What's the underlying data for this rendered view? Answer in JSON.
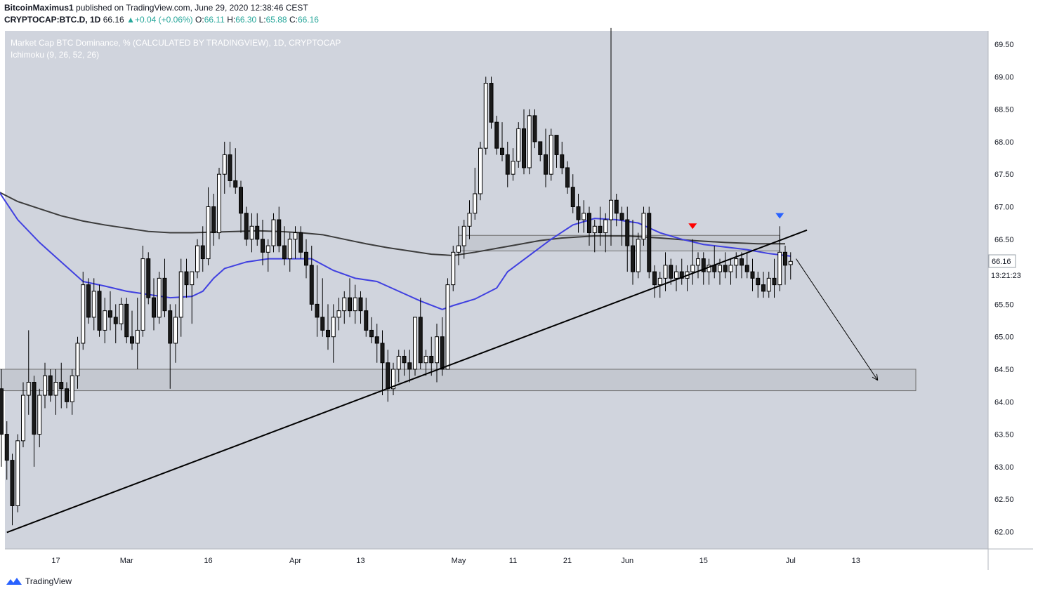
{
  "header": {
    "author": "BitcoinMaximus1",
    "published": "published on TradingView.com, June 29, 2020 12:38:46 CEST",
    "symbol": "CRYPTOCAP:BTC.D, 1D",
    "last": "66.16",
    "change": "+0.04 (+0.06%)",
    "open_label": "O:",
    "open": "66.11",
    "high_label": "H:",
    "high": "66.30",
    "low_label": "L:",
    "low": "65.88",
    "close_label": "C:",
    "close": "66.16"
  },
  "footer": {
    "brand": "TradingView"
  },
  "colors": {
    "plot_bg": "#d0d4dd",
    "bull_body": "#ffffff",
    "bear_body": "#1a1a1a",
    "ma_blue": "#4040e0",
    "ma_dark": "#3c3c3c",
    "trendline": "#000000",
    "zone_fill": "#c4c8d0",
    "zone_border": "#707070",
    "arrow_red": "#ff0000",
    "arrow_blue": "#2962ff"
  },
  "chart_data": {
    "type": "candlestick",
    "title": "Market Cap BTC Dominance, % (CALCULATED BY TRADINGVIEW), 1D, CRYPTOCAP",
    "indicator": "Ichimoku (9, 26, 52, 26)",
    "ylim": [
      61.8,
      69.75
    ],
    "y_ticks": [
      "69.50",
      "69.00",
      "68.50",
      "68.00",
      "67.50",
      "67.00",
      "66.50",
      "66.00",
      "65.50",
      "65.00",
      "64.50",
      "64.00",
      "63.50",
      "63.00",
      "62.50",
      "62.00"
    ],
    "x_ticks": [
      {
        "label": "17",
        "day": 47
      },
      {
        "label": "Mar",
        "day": 60
      },
      {
        "label": "16",
        "day": 75
      },
      {
        "label": "Apr",
        "day": 91
      },
      {
        "label": "13",
        "day": 103
      },
      {
        "label": "May",
        "day": 121
      },
      {
        "label": "11",
        "day": 131
      },
      {
        "label": "21",
        "day": 141
      },
      {
        "label": "Jun",
        "day": 152
      },
      {
        "label": "15",
        "day": 166
      },
      {
        "label": "Jul",
        "day": 182
      },
      {
        "label": "13",
        "day": 194
      }
    ],
    "x_range_days": [
      32,
      205
    ],
    "price_label": "66.16",
    "countdown_label": "13:21:23",
    "ohlc": [
      [
        33,
        65.1,
        65.2,
        64.8,
        64.95
      ],
      [
        34,
        64.95,
        65.15,
        64.7,
        64.8
      ],
      [
        35,
        64.8,
        64.9,
        64.4,
        64.5
      ],
      [
        36,
        64.5,
        64.6,
        63.9,
        64.2
      ],
      [
        37,
        64.2,
        64.5,
        63.0,
        63.5
      ],
      [
        38,
        63.5,
        63.7,
        62.8,
        63.1
      ],
      [
        39,
        63.1,
        63.2,
        62.1,
        62.4
      ],
      [
        40,
        62.4,
        63.5,
        62.3,
        63.4
      ],
      [
        41,
        63.4,
        64.3,
        63.3,
        64.1
      ],
      [
        42,
        64.1,
        65.1,
        63.8,
        64.3
      ],
      [
        43,
        64.3,
        64.4,
        63.0,
        63.5
      ],
      [
        44,
        63.5,
        64.2,
        63.3,
        64.1
      ],
      [
        45,
        64.1,
        64.6,
        63.9,
        64.4
      ],
      [
        46,
        64.4,
        64.5,
        64.0,
        64.1
      ],
      [
        47,
        64.1,
        64.5,
        63.8,
        64.3
      ],
      [
        48,
        64.3,
        64.6,
        63.9,
        64.2
      ],
      [
        49,
        64.2,
        64.3,
        63.9,
        64.0
      ],
      [
        50,
        64.0,
        64.5,
        63.8,
        64.4
      ],
      [
        51,
        64.4,
        65.0,
        64.2,
        64.9
      ],
      [
        52,
        64.9,
        66.0,
        64.8,
        65.8
      ],
      [
        53,
        65.8,
        65.9,
        65.2,
        65.3
      ],
      [
        54,
        65.3,
        65.9,
        65.1,
        65.7
      ],
      [
        55,
        65.7,
        65.8,
        65.0,
        65.1
      ],
      [
        56,
        65.1,
        65.6,
        64.9,
        65.4
      ],
      [
        57,
        65.4,
        65.7,
        65.1,
        65.3
      ],
      [
        58,
        65.3,
        65.5,
        64.9,
        65.2
      ],
      [
        59,
        65.2,
        65.6,
        65.1,
        65.5
      ],
      [
        60,
        65.5,
        65.6,
        64.9,
        65.0
      ],
      [
        61,
        65.0,
        65.4,
        64.8,
        64.9
      ],
      [
        62,
        64.9,
        65.6,
        64.5,
        65.1
      ],
      [
        63,
        65.1,
        66.4,
        65.0,
        66.2
      ],
      [
        64,
        66.2,
        66.3,
        65.5,
        65.6
      ],
      [
        65,
        65.6,
        65.9,
        65.1,
        65.3
      ],
      [
        66,
        65.3,
        66.0,
        65.2,
        65.9
      ],
      [
        67,
        65.9,
        66.2,
        65.3,
        65.4
      ],
      [
        68,
        65.4,
        65.5,
        64.2,
        64.9
      ],
      [
        69,
        64.9,
        65.5,
        64.6,
        65.3
      ],
      [
        70,
        65.3,
        66.2,
        65.0,
        66.0
      ],
      [
        71,
        66.0,
        66.2,
        65.6,
        65.8
      ],
      [
        72,
        65.8,
        66.0,
        65.2,
        66.0
      ],
      [
        73,
        66.0,
        66.5,
        65.9,
        66.4
      ],
      [
        74,
        66.4,
        66.7,
        66.0,
        66.2
      ],
      [
        75,
        66.2,
        67.3,
        66.1,
        67.0
      ],
      [
        76,
        67.0,
        67.2,
        66.4,
        66.6
      ],
      [
        77,
        66.6,
        67.6,
        66.5,
        67.5
      ],
      [
        78,
        67.5,
        68.0,
        67.2,
        67.8
      ],
      [
        79,
        67.8,
        68.0,
        67.3,
        67.4
      ],
      [
        80,
        67.4,
        67.9,
        67.2,
        67.3
      ],
      [
        81,
        67.3,
        67.4,
        66.6,
        66.9
      ],
      [
        82,
        66.9,
        67.0,
        66.4,
        66.5
      ],
      [
        83,
        66.5,
        66.9,
        66.3,
        66.7
      ],
      [
        84,
        66.7,
        66.9,
        66.4,
        66.5
      ],
      [
        85,
        66.5,
        66.8,
        66.1,
        66.3
      ],
      [
        86,
        66.3,
        66.5,
        66.0,
        66.4
      ],
      [
        87,
        66.4,
        66.9,
        66.3,
        66.8
      ],
      [
        88,
        66.8,
        67.0,
        66.3,
        66.4
      ],
      [
        89,
        66.4,
        66.7,
        66.1,
        66.2
      ],
      [
        90,
        66.2,
        66.6,
        66.0,
        66.5
      ],
      [
        91,
        66.5,
        66.7,
        66.2,
        66.6
      ],
      [
        92,
        66.6,
        66.7,
        66.2,
        66.3
      ],
      [
        93,
        66.3,
        66.5,
        65.9,
        66.1
      ],
      [
        94,
        66.1,
        66.4,
        65.4,
        65.5
      ],
      [
        95,
        65.5,
        66.1,
        65.0,
        65.3
      ],
      [
        96,
        65.3,
        65.9,
        65.0,
        65.1
      ],
      [
        97,
        65.1,
        65.5,
        64.8,
        65.0
      ],
      [
        98,
        65.0,
        65.5,
        64.6,
        65.3
      ],
      [
        99,
        65.3,
        65.6,
        65.1,
        65.4
      ],
      [
        100,
        65.4,
        65.7,
        65.2,
        65.6
      ],
      [
        101,
        65.6,
        65.9,
        65.3,
        65.4
      ],
      [
        102,
        65.4,
        65.8,
        65.2,
        65.6
      ],
      [
        103,
        65.6,
        65.7,
        65.2,
        65.4
      ],
      [
        104,
        65.4,
        65.6,
        65.0,
        65.1
      ],
      [
        105,
        65.1,
        65.3,
        64.9,
        65.0
      ],
      [
        106,
        65.0,
        65.2,
        64.6,
        64.9
      ],
      [
        107,
        64.9,
        65.1,
        64.1,
        64.6
      ],
      [
        108,
        64.6,
        64.8,
        64.0,
        64.2
      ],
      [
        109,
        64.2,
        64.6,
        64.1,
        64.5
      ],
      [
        110,
        64.5,
        64.8,
        64.3,
        64.7
      ],
      [
        111,
        64.7,
        64.8,
        64.4,
        64.6
      ],
      [
        112,
        64.6,
        64.8,
        64.3,
        64.5
      ],
      [
        113,
        64.5,
        65.3,
        64.4,
        65.3
      ],
      [
        114,
        65.3,
        65.6,
        64.5,
        64.6
      ],
      [
        115,
        64.6,
        64.8,
        64.4,
        64.7
      ],
      [
        116,
        64.7,
        65.0,
        64.4,
        64.6
      ],
      [
        117,
        64.6,
        65.2,
        64.3,
        65.0
      ],
      [
        118,
        65.0,
        65.3,
        64.4,
        64.5
      ],
      [
        119,
        64.5,
        65.9,
        64.5,
        65.8
      ],
      [
        120,
        65.8,
        66.4,
        65.7,
        66.3
      ],
      [
        121,
        66.3,
        66.7,
        66.1,
        66.4
      ],
      [
        122,
        66.4,
        66.8,
        66.2,
        66.7
      ],
      [
        123,
        66.7,
        67.1,
        66.5,
        66.9
      ],
      [
        124,
        66.9,
        67.6,
        66.8,
        67.2
      ],
      [
        125,
        67.2,
        68.0,
        67.1,
        67.9
      ],
      [
        126,
        67.9,
        69.0,
        67.8,
        68.9
      ],
      [
        127,
        68.9,
        69.0,
        68.2,
        68.3
      ],
      [
        128,
        68.3,
        68.4,
        67.8,
        67.9
      ],
      [
        129,
        67.9,
        68.3,
        67.7,
        67.8
      ],
      [
        130,
        67.8,
        68.0,
        67.3,
        67.5
      ],
      [
        131,
        67.5,
        67.9,
        67.4,
        67.7
      ],
      [
        132,
        67.7,
        68.3,
        67.6,
        68.2
      ],
      [
        133,
        68.2,
        68.5,
        67.5,
        67.6
      ],
      [
        134,
        67.6,
        68.5,
        67.5,
        68.4
      ],
      [
        135,
        68.4,
        68.5,
        67.9,
        68.0
      ],
      [
        136,
        68.0,
        68.0,
        67.7,
        67.8
      ],
      [
        137,
        67.8,
        68.2,
        67.3,
        67.5
      ],
      [
        138,
        67.5,
        68.2,
        67.4,
        68.1
      ],
      [
        139,
        68.1,
        68.1,
        67.6,
        67.8
      ],
      [
        140,
        67.8,
        68.0,
        67.5,
        67.6
      ],
      [
        141,
        67.6,
        67.7,
        67.2,
        67.3
      ],
      [
        142,
        67.3,
        67.5,
        66.9,
        67.0
      ],
      [
        143,
        67.0,
        67.2,
        66.6,
        66.8
      ],
      [
        144,
        66.8,
        67.1,
        66.6,
        66.9
      ],
      [
        145,
        66.9,
        67.0,
        66.4,
        66.6
      ],
      [
        146,
        66.6,
        66.8,
        66.3,
        66.7
      ],
      [
        147,
        66.7,
        67.0,
        66.4,
        66.6
      ],
      [
        148,
        66.6,
        66.9,
        66.3,
        66.8
      ],
      [
        149,
        66.8,
        69.75,
        66.4,
        67.1
      ],
      [
        150,
        67.1,
        67.2,
        66.7,
        66.9
      ],
      [
        151,
        66.9,
        67.0,
        66.4,
        66.8
      ],
      [
        152,
        66.8,
        67.0,
        66.0,
        66.4
      ],
      [
        153,
        66.4,
        66.8,
        65.8,
        66.0
      ],
      [
        154,
        66.0,
        66.6,
        65.9,
        66.5
      ],
      [
        155,
        66.5,
        67.0,
        66.4,
        66.9
      ],
      [
        156,
        66.9,
        67.0,
        65.9,
        66.0
      ],
      [
        157,
        66.0,
        66.1,
        65.6,
        65.8
      ],
      [
        158,
        65.8,
        66.0,
        65.6,
        65.9
      ],
      [
        159,
        65.9,
        66.3,
        65.7,
        66.1
      ],
      [
        160,
        66.1,
        66.2,
        65.8,
        65.9
      ],
      [
        161,
        65.9,
        66.1,
        65.7,
        66.0
      ],
      [
        162,
        66.0,
        66.2,
        65.8,
        65.9
      ],
      [
        163,
        65.9,
        66.1,
        65.7,
        66.0
      ],
      [
        164,
        66.0,
        66.5,
        65.8,
        66.1
      ],
      [
        165,
        66.1,
        66.3,
        65.9,
        66.2
      ],
      [
        166,
        66.2,
        66.3,
        65.8,
        66.0
      ],
      [
        167,
        66.0,
        66.2,
        65.8,
        66.1
      ],
      [
        168,
        66.1,
        66.4,
        65.9,
        66.0
      ],
      [
        169,
        66.0,
        66.2,
        65.8,
        66.1
      ],
      [
        170,
        66.1,
        66.3,
        65.9,
        66.0
      ],
      [
        171,
        66.0,
        66.2,
        65.8,
        66.1
      ],
      [
        172,
        66.1,
        66.3,
        65.9,
        66.2
      ],
      [
        173,
        66.2,
        66.3,
        65.9,
        66.1
      ],
      [
        174,
        66.1,
        66.3,
        65.9,
        66.0
      ],
      [
        175,
        66.0,
        66.2,
        65.7,
        65.9
      ],
      [
        176,
        65.9,
        66.0,
        65.6,
        65.8
      ],
      [
        177,
        65.8,
        66.0,
        65.6,
        65.7
      ],
      [
        178,
        65.7,
        66.0,
        65.6,
        65.9
      ],
      [
        179,
        65.9,
        66.2,
        65.6,
        65.8
      ],
      [
        180,
        65.8,
        66.7,
        65.7,
        66.3
      ],
      [
        181,
        66.3,
        66.4,
        65.8,
        66.1
      ],
      [
        182,
        66.11,
        66.3,
        65.88,
        66.16
      ]
    ],
    "ma_blue": [
      [
        32,
        67.8
      ],
      [
        36,
        67.3
      ],
      [
        40,
        66.8
      ],
      [
        44,
        66.45
      ],
      [
        48,
        66.15
      ],
      [
        52,
        65.85
      ],
      [
        56,
        65.78
      ],
      [
        60,
        65.7
      ],
      [
        64,
        65.65
      ],
      [
        68,
        65.6
      ],
      [
        72,
        65.62
      ],
      [
        74,
        65.7
      ],
      [
        76,
        65.9
      ],
      [
        78,
        66.05
      ],
      [
        82,
        66.15
      ],
      [
        86,
        66.2
      ],
      [
        90,
        66.2
      ],
      [
        94,
        66.2
      ],
      [
        98,
        66.02
      ],
      [
        102,
        65.9
      ],
      [
        106,
        65.85
      ],
      [
        110,
        65.7
      ],
      [
        114,
        65.55
      ],
      [
        118,
        65.42
      ],
      [
        120,
        65.48
      ],
      [
        124,
        65.58
      ],
      [
        128,
        65.75
      ],
      [
        130,
        66.0
      ],
      [
        134,
        66.25
      ],
      [
        138,
        66.5
      ],
      [
        142,
        66.72
      ],
      [
        146,
        66.82
      ],
      [
        150,
        66.8
      ],
      [
        154,
        66.75
      ],
      [
        158,
        66.6
      ],
      [
        162,
        66.5
      ],
      [
        166,
        66.42
      ],
      [
        170,
        66.38
      ],
      [
        174,
        66.34
      ],
      [
        178,
        66.28
      ],
      [
        182,
        66.24
      ]
    ],
    "ma_dark": [
      [
        32,
        67.4
      ],
      [
        36,
        67.25
      ],
      [
        40,
        67.08
      ],
      [
        44,
        66.97
      ],
      [
        48,
        66.86
      ],
      [
        52,
        66.78
      ],
      [
        56,
        66.72
      ],
      [
        60,
        66.67
      ],
      [
        64,
        66.62
      ],
      [
        68,
        66.6
      ],
      [
        72,
        66.6
      ],
      [
        76,
        66.61
      ],
      [
        80,
        66.62
      ],
      [
        84,
        66.63
      ],
      [
        88,
        66.62
      ],
      [
        92,
        66.6
      ],
      [
        96,
        66.57
      ],
      [
        100,
        66.5
      ],
      [
        104,
        66.43
      ],
      [
        108,
        66.37
      ],
      [
        112,
        66.32
      ],
      [
        116,
        66.27
      ],
      [
        120,
        66.25
      ],
      [
        124,
        66.3
      ],
      [
        128,
        66.36
      ],
      [
        132,
        66.42
      ],
      [
        136,
        66.48
      ],
      [
        140,
        66.52
      ],
      [
        146,
        66.55
      ],
      [
        152,
        66.55
      ],
      [
        158,
        66.52
      ],
      [
        164,
        66.48
      ],
      [
        170,
        66.45
      ],
      [
        176,
        66.43
      ],
      [
        181,
        66.43
      ]
    ],
    "zones": [
      {
        "x0": 34,
        "x1": 205,
        "y0": 64.17,
        "y1": 64.5
      },
      {
        "x0": 121,
        "x1": 180,
        "y0": 66.32,
        "y1": 66.56
      }
    ],
    "trendline": {
      "x0": 38,
      "y0": 61.99,
      "x1": 185,
      "y1": 66.64
    },
    "projection": {
      "x0": 183,
      "y0": 66.2,
      "x1": 198,
      "y1": 64.33
    },
    "markers": [
      {
        "type": "down-arrow",
        "day": 164,
        "value": 66.7,
        "color": "#ff0000"
      },
      {
        "type": "down-arrow",
        "day": 180,
        "value": 66.86,
        "color": "#2962ff"
      }
    ]
  }
}
